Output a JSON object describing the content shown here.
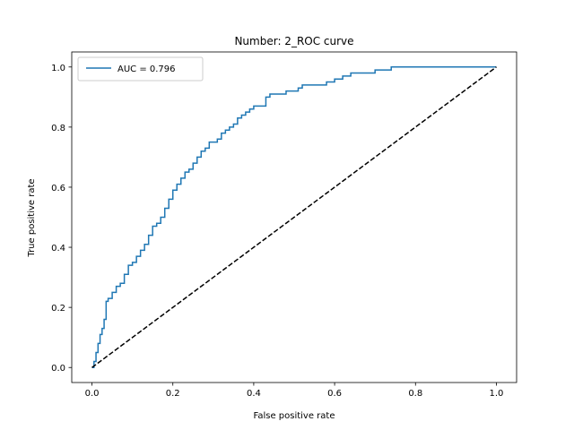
{
  "chart_data": {
    "type": "line",
    "title": "Number: 2_ROC curve",
    "xlabel": "False positive rate",
    "ylabel": "True positive rate",
    "xlim": [
      -0.05,
      1.05
    ],
    "ylim": [
      -0.05,
      1.05
    ],
    "x_ticks": [
      "0.0",
      "0.2",
      "0.4",
      "0.6",
      "0.8",
      "1.0"
    ],
    "y_ticks": [
      "0.0",
      "0.2",
      "0.4",
      "0.6",
      "0.8",
      "1.0"
    ],
    "grid": false,
    "legend": {
      "position": "top-left"
    },
    "series": [
      {
        "name": "AUC = 0.796",
        "color": "#1f77b4",
        "style": "solid-step",
        "x": [
          0.0,
          0.005,
          0.01,
          0.015,
          0.02,
          0.025,
          0.03,
          0.035,
          0.04,
          0.05,
          0.06,
          0.07,
          0.08,
          0.09,
          0.1,
          0.11,
          0.12,
          0.13,
          0.14,
          0.15,
          0.16,
          0.17,
          0.18,
          0.19,
          0.2,
          0.21,
          0.22,
          0.23,
          0.24,
          0.25,
          0.26,
          0.27,
          0.28,
          0.29,
          0.3,
          0.31,
          0.32,
          0.33,
          0.34,
          0.35,
          0.36,
          0.37,
          0.38,
          0.39,
          0.4,
          0.41,
          0.42,
          0.43,
          0.44,
          0.45,
          0.47,
          0.48,
          0.49,
          0.5,
          0.51,
          0.52,
          0.54,
          0.56,
          0.58,
          0.6,
          0.62,
          0.64,
          0.66,
          0.68,
          0.7,
          0.72,
          0.74,
          0.76,
          0.8,
          0.9,
          1.0
        ],
        "y": [
          0.0,
          0.02,
          0.05,
          0.08,
          0.11,
          0.13,
          0.16,
          0.22,
          0.23,
          0.25,
          0.27,
          0.28,
          0.31,
          0.34,
          0.35,
          0.37,
          0.39,
          0.41,
          0.44,
          0.47,
          0.48,
          0.5,
          0.53,
          0.56,
          0.59,
          0.61,
          0.63,
          0.65,
          0.66,
          0.68,
          0.7,
          0.72,
          0.73,
          0.75,
          0.75,
          0.76,
          0.78,
          0.79,
          0.8,
          0.81,
          0.83,
          0.84,
          0.85,
          0.86,
          0.87,
          0.87,
          0.87,
          0.9,
          0.91,
          0.91,
          0.91,
          0.92,
          0.92,
          0.92,
          0.93,
          0.94,
          0.94,
          0.94,
          0.95,
          0.96,
          0.97,
          0.98,
          0.98,
          0.98,
          0.99,
          0.99,
          1.0,
          1.0,
          1.0,
          1.0,
          1.0
        ]
      },
      {
        "name": "",
        "color": "#000000",
        "style": "dashed",
        "x": [
          0.0,
          1.0
        ],
        "y": [
          0.0,
          1.0
        ]
      }
    ]
  }
}
